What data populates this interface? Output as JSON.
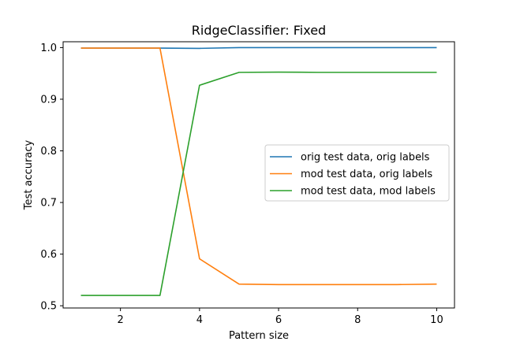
{
  "chart_data": {
    "type": "line",
    "title": "RidgeClassifier: Fixed",
    "xlabel": "Pattern size",
    "ylabel": "Test accuracy",
    "xlim": [
      0.55,
      10.45
    ],
    "ylim": [
      0.4957,
      1.0113
    ],
    "xticks": [
      2,
      4,
      6,
      8,
      10
    ],
    "yticks": [
      "0.5",
      "0.6",
      "0.7",
      "0.8",
      "0.9",
      "1.0"
    ],
    "x": [
      1,
      2,
      3,
      4,
      5,
      6,
      7,
      8,
      9,
      10
    ],
    "series": [
      {
        "name": "orig test data, orig labels",
        "color": "#1f77b4",
        "values": [
          0.999,
          0.999,
          0.999,
          0.9985,
          1.0,
          1.0,
          1.0,
          1.0,
          1.0,
          1.0
        ]
      },
      {
        "name": "mod test data, orig labels",
        "color": "#ff7f0e",
        "values": [
          0.999,
          0.999,
          0.999,
          0.591,
          0.542,
          0.541,
          0.541,
          0.541,
          0.541,
          0.542
        ]
      },
      {
        "name": "mod test data, mod labels",
        "color": "#2ca02c",
        "values": [
          0.52,
          0.52,
          0.52,
          0.927,
          0.952,
          0.9525,
          0.952,
          0.952,
          0.952,
          0.952
        ]
      }
    ],
    "legend": "center-right",
    "grid": false
  }
}
